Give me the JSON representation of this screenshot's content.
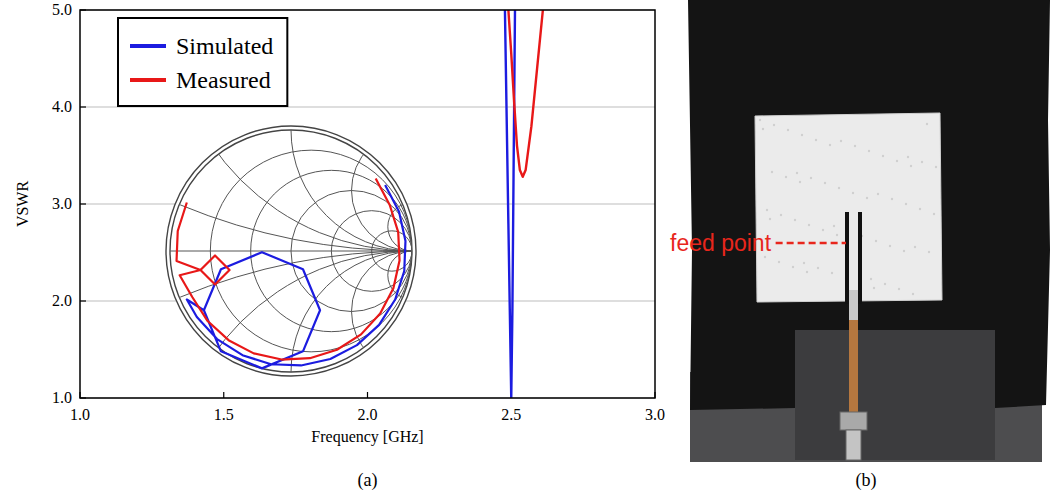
{
  "chart_data": {
    "type": "line",
    "x_label": "Frequency [GHz]",
    "y_label": "VSWR",
    "xlim": [
      1.0,
      3.0
    ],
    "ylim": [
      1.0,
      5.0
    ],
    "xticks": [
      {
        "value": 1,
        "label": "1.0"
      },
      {
        "value": 1.5,
        "label": "1.5"
      },
      {
        "value": 2,
        "label": "2.0"
      },
      {
        "value": 2.5,
        "label": "2.5"
      },
      {
        "value": 3,
        "label": "3.0"
      }
    ],
    "yticks": [
      {
        "value": 1,
        "label": "1.0"
      },
      {
        "value": 2,
        "label": "2.0"
      },
      {
        "value": 3,
        "label": "3.0"
      },
      {
        "value": 4,
        "label": "4.0"
      },
      {
        "value": 5,
        "label": "5.0"
      }
    ],
    "grid": true,
    "legend": "upper left",
    "series": [
      {
        "name": "Simulated",
        "color": "#1c1ce0",
        "x": [
          2.478,
          2.484,
          2.49,
          2.495,
          2.5,
          2.504,
          2.508,
          2.513
        ],
        "values": [
          5.0,
          3.9,
          2.8,
          1.9,
          1.0,
          1.9,
          3.3,
          5.0
        ]
      },
      {
        "name": "Measured",
        "color": "#e81818",
        "x": [
          2.49,
          2.5,
          2.51,
          2.52,
          2.53,
          2.54,
          2.55,
          2.57,
          2.59,
          2.61
        ],
        "values": [
          5.0,
          4.55,
          4.05,
          3.6,
          3.35,
          3.28,
          3.35,
          3.8,
          4.4,
          5.0
        ]
      }
    ],
    "inset": {
      "type": "smith",
      "series": [
        {
          "color": "#1c1ce0",
          "re": [
            0.778,
            0.893,
            0.946,
            0.936,
            0.861,
            0.728,
            0.545,
            0.325,
            0.083,
            -0.165,
            -0.401,
            -0.611,
            -0.778,
            -0.861,
            -0.72,
            -0.579,
            -0.24,
            0.099,
            0.24,
            0.099,
            -0.24,
            -0.579,
            -0.72
          ],
          "im": [
            0.545,
            0.325,
            0.083,
            -0.165,
            -0.401,
            -0.611,
            -0.778,
            -0.893,
            -0.946,
            -0.936,
            -0.861,
            -0.728,
            -0.545,
            -0.401,
            -0.49,
            -0.151,
            -0.01,
            -0.151,
            -0.49,
            -0.829,
            -0.97,
            -0.829,
            -0.49
          ]
        },
        {
          "color": "#e81818",
          "re": [
            -0.861,
            -0.936,
            -0.946,
            -0.748,
            -0.628,
            -0.508,
            -0.628,
            -0.748,
            -0.92,
            -0.816,
            -0.689,
            -0.516,
            -0.308,
            -0.078,
            0.156,
            0.38,
            0.579,
            0.737,
            0.846,
            0.897,
            0.886,
            0.816,
            0.7
          ],
          "im": [
            0.401,
            0.165,
            -0.083,
            -0.157,
            -0.037,
            -0.157,
            -0.277,
            -0.157,
            -0.2,
            -0.38,
            -0.579,
            -0.737,
            -0.846,
            -0.897,
            -0.886,
            -0.816,
            -0.689,
            -0.516,
            -0.308,
            -0.078,
            0.156,
            0.38,
            0.6
          ]
        }
      ]
    }
  },
  "figure": {
    "panel_labels": [
      "(a)",
      "(b)"
    ],
    "photo": {
      "annotation": "feed point"
    }
  }
}
